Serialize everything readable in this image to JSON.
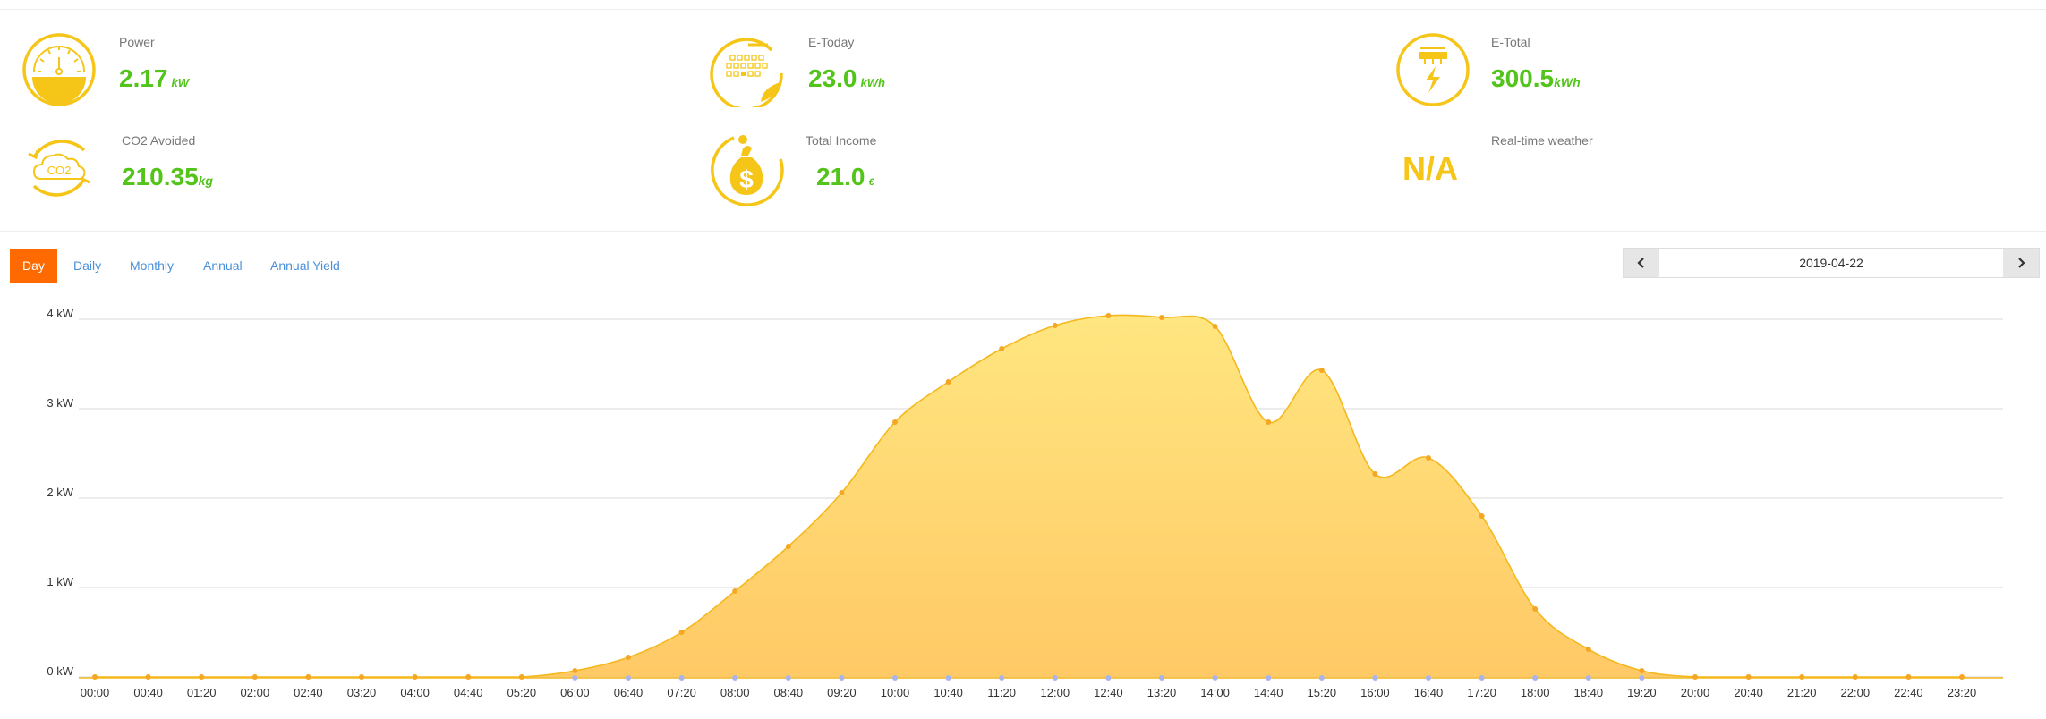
{
  "stats": {
    "power": {
      "label": "Power",
      "value": "2.17",
      "unit": "kW",
      "icon": "gauge-icon"
    },
    "e_today": {
      "label": "E-Today",
      "value": "23.0",
      "unit": "kWh",
      "icon": "calendar-icon"
    },
    "e_total": {
      "label": "E-Total",
      "value": "300.5",
      "unit": "kWh",
      "icon": "lightning-icon"
    },
    "co2": {
      "label": "CO2 Avoided",
      "value": "210.35",
      "unit": "kg",
      "icon": "co2-cloud-icon",
      "icon_text": "CO2"
    },
    "income": {
      "label": "Total Income",
      "value": "21.0",
      "unit": "€",
      "icon": "money-bag-icon"
    },
    "weather": {
      "label": "Real-time weather",
      "value": "N/A"
    }
  },
  "tabs": [
    {
      "label": "Day",
      "active": true
    },
    {
      "label": "Daily",
      "active": false
    },
    {
      "label": "Monthly",
      "active": false
    },
    {
      "label": "Annual",
      "active": false
    },
    {
      "label": "Annual Yield",
      "active": false
    }
  ],
  "date_nav": {
    "date": "2019-04-22",
    "prev_icon": "chevron-left-icon",
    "next_icon": "chevron-right-icon"
  },
  "colors": {
    "value_green": "#52c41a",
    "icon_yellow": "#f5c518",
    "active_tab": "#ff6a00",
    "tab_link": "#4a90d9",
    "area_top": "#ffe680",
    "area_bottom": "#ffc966",
    "line": "#f5b81c",
    "zero_markers": "#a8b4f0"
  },
  "chart_data": {
    "type": "area",
    "title": "",
    "xlabel": "",
    "ylabel": "",
    "y_unit": "kW",
    "ylim": [
      0,
      4
    ],
    "y_ticks": [
      "0 kW",
      "1 kW",
      "2 kW",
      "3 kW",
      "4 kW"
    ],
    "grid": true,
    "x_tick_labels": [
      "00:00",
      "00:40",
      "01:20",
      "02:00",
      "02:40",
      "03:20",
      "04:00",
      "04:40",
      "05:20",
      "06:00",
      "06:40",
      "07:20",
      "08:00",
      "08:40",
      "09:20",
      "10:00",
      "10:40",
      "11:20",
      "12:00",
      "12:40",
      "13:20",
      "14:00",
      "14:40",
      "15:20",
      "16:00",
      "16:40",
      "17:20",
      "18:00",
      "18:40",
      "19:20",
      "20:00",
      "20:40",
      "21:20",
      "22:00",
      "22:40",
      "23:20"
    ],
    "series": [
      {
        "values": [
          0,
          0,
          0,
          0,
          0,
          0,
          0,
          0,
          0,
          0.07,
          0.22,
          0.5,
          0.96,
          1.46,
          2.06,
          2.85,
          3.3,
          3.67,
          3.93,
          4.04,
          4.02,
          3.92,
          2.85,
          3.43,
          2.27,
          2.45,
          1.8,
          0.76,
          0.31,
          0.07,
          0,
          0,
          0,
          0,
          0,
          0
        ]
      },
      {
        "values": [
          0,
          0,
          0,
          0,
          0,
          0,
          0,
          0,
          0,
          0,
          0,
          0,
          0,
          0,
          0,
          0,
          0,
          0,
          0,
          0,
          0,
          0,
          0,
          0,
          0,
          0,
          0,
          0,
          0,
          0,
          0,
          0,
          0,
          0,
          0,
          0
        ]
      }
    ]
  }
}
